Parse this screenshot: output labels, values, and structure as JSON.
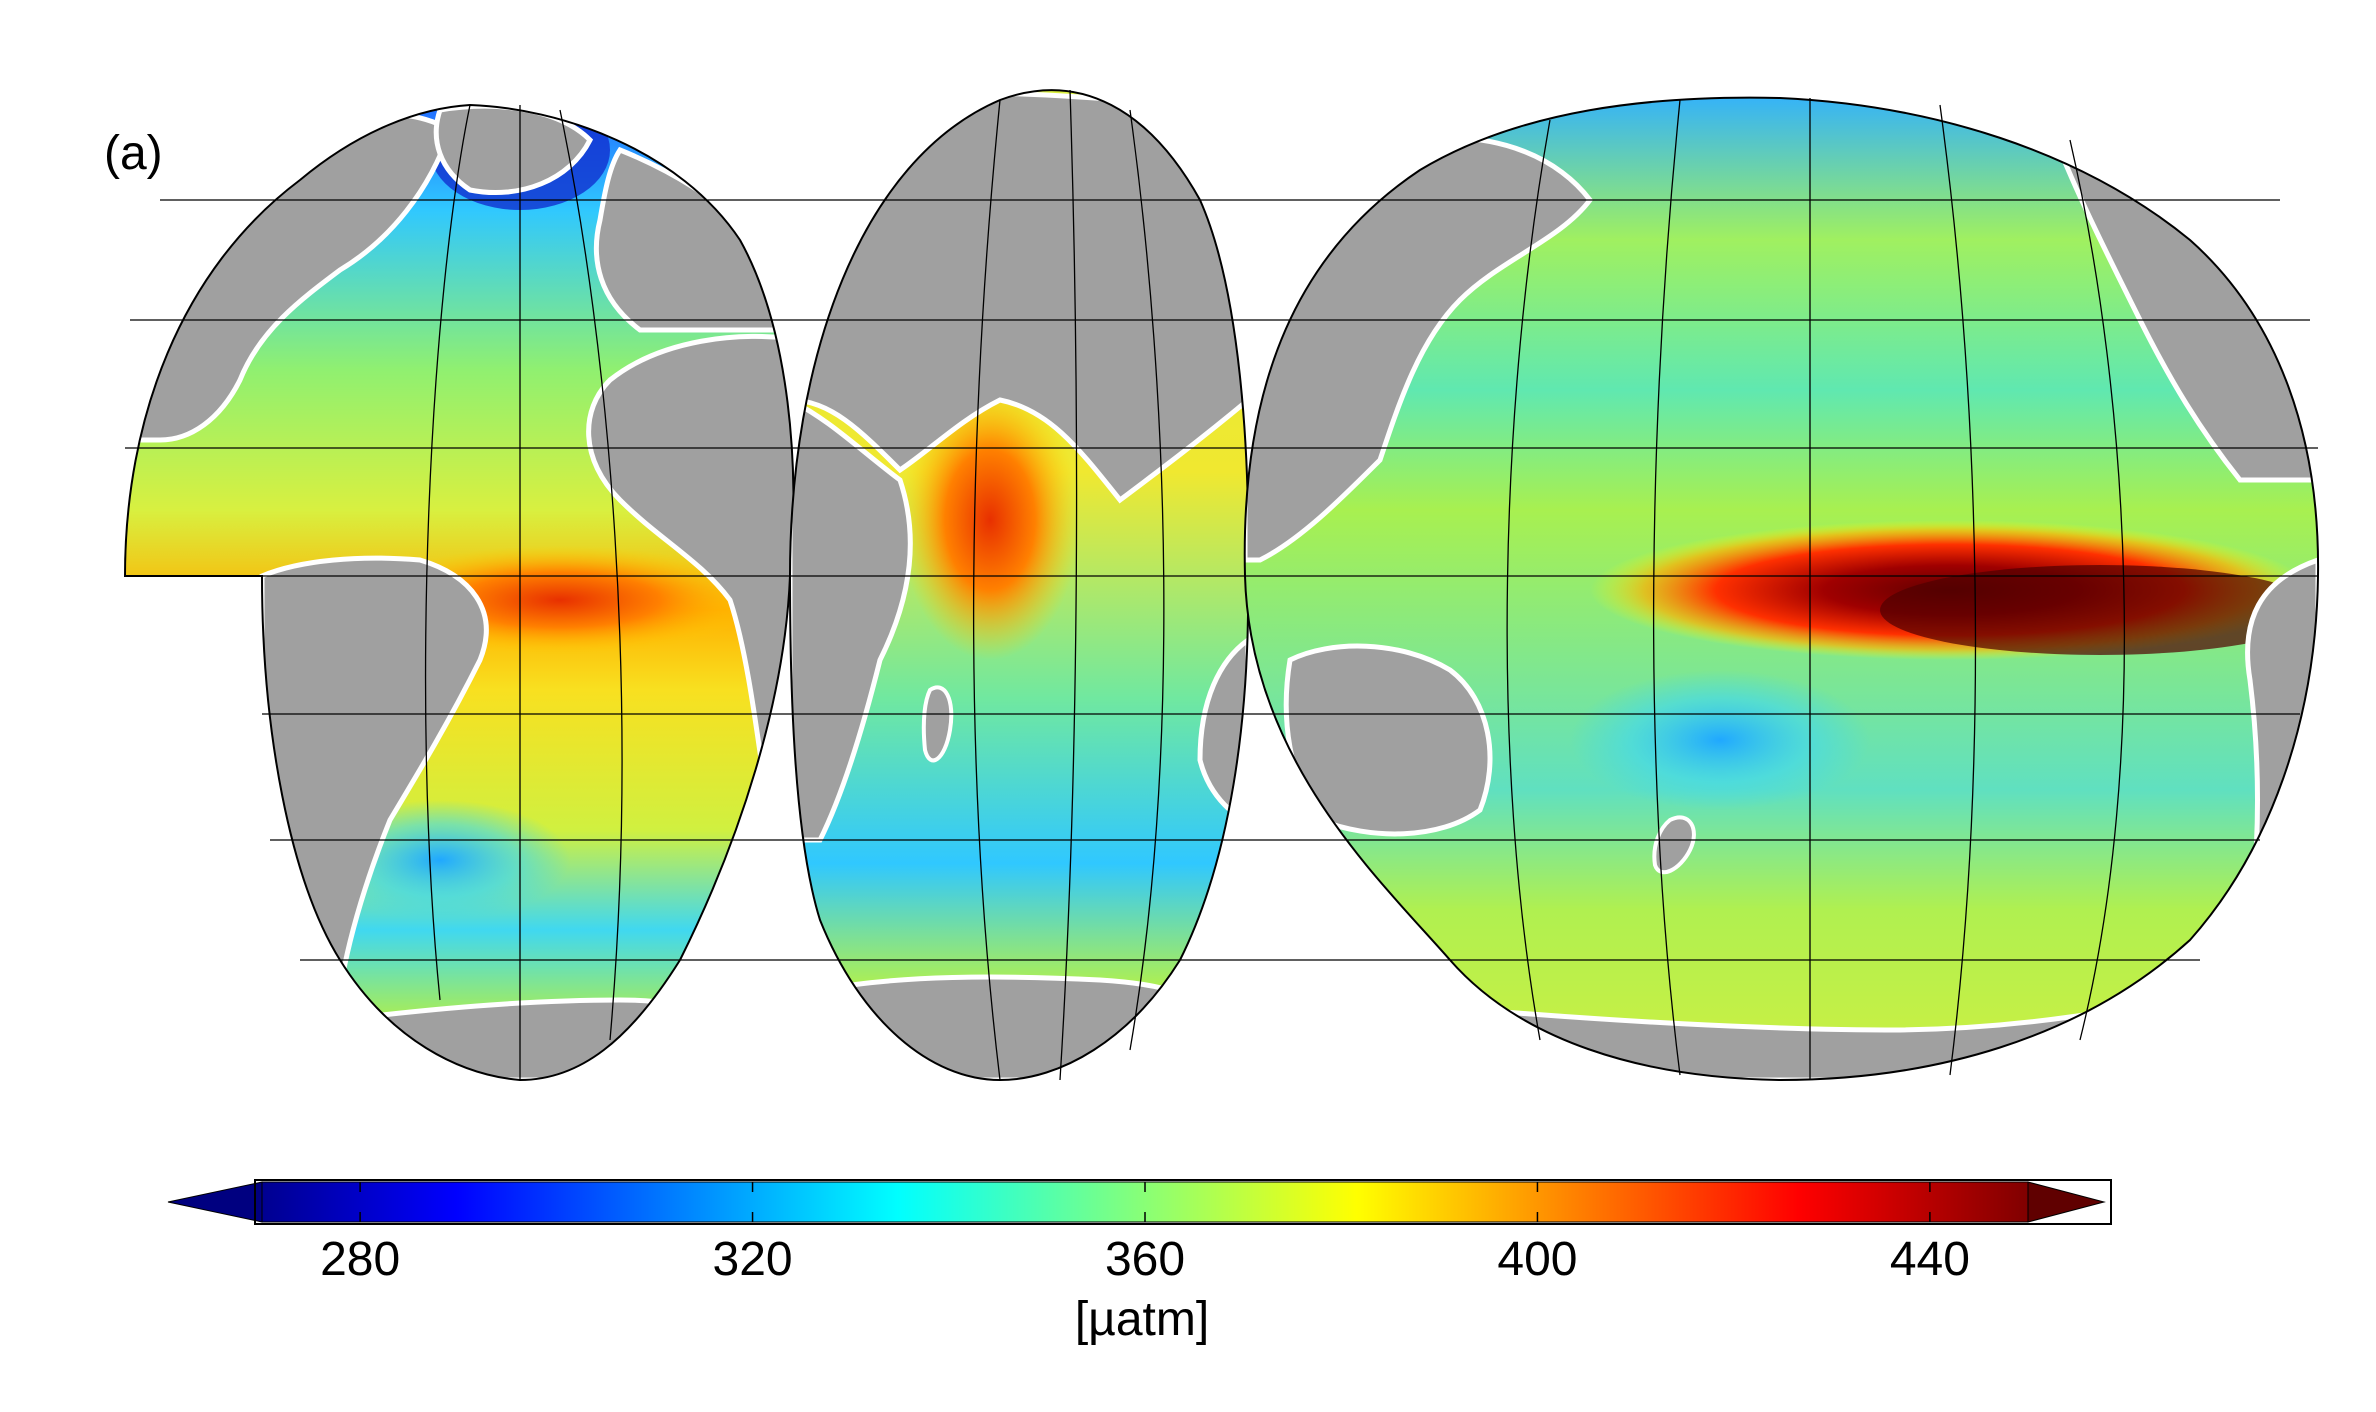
{
  "panel": {
    "label": "(a)"
  },
  "map": {
    "projection": "interrupted goode-homolosine",
    "variable": "surface ocean pCO2",
    "land_color": "#a0a0a0",
    "coast_color": "#ffffff",
    "graticule_color": "#000000"
  },
  "colorbar": {
    "min": 270,
    "max": 450,
    "extend": "both",
    "colormap": "jet",
    "ticks": [
      {
        "value": 280,
        "label": "280"
      },
      {
        "value": 320,
        "label": "320"
      },
      {
        "value": 360,
        "label": "360"
      },
      {
        "value": 400,
        "label": "400"
      },
      {
        "value": 440,
        "label": "440"
      }
    ],
    "unit": "[µatm]"
  }
}
